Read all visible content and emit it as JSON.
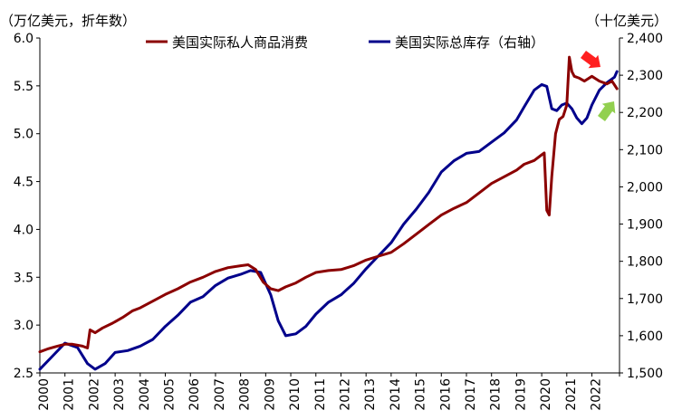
{
  "chart_data": {
    "type": "line",
    "left_axis_title": "（万亿美元，折年数）",
    "right_axis_title": "（十亿美元）",
    "x_ticks": [
      "2000",
      "2001",
      "2002",
      "2003",
      "2004",
      "2005",
      "2006",
      "2007",
      "2008",
      "2009",
      "2010",
      "2011",
      "2012",
      "2013",
      "2014",
      "2015",
      "2016",
      "2017",
      "2018",
      "2019",
      "2020",
      "2021",
      "2022"
    ],
    "xlim": [
      2000,
      2023.1
    ],
    "ylim_left": [
      2.5,
      6.0
    ],
    "y_ticks_left": [
      "2.5",
      "3.0",
      "3.5",
      "4.0",
      "4.5",
      "5.0",
      "5.5",
      "6.0"
    ],
    "ylim_right": [
      1500,
      2400
    ],
    "y_ticks_right": [
      "1,500",
      "1,600",
      "1,700",
      "1,800",
      "1,900",
      "2,000",
      "2,100",
      "2,200",
      "2,300",
      "2,400"
    ],
    "grid": false,
    "legend_position": "top",
    "colors": {
      "consumption": "#8B0000",
      "inventories": "#00008B",
      "down_arrow": "#FF2020",
      "up_arrow": "#92D050"
    },
    "series": [
      {
        "name": "美国实际私人商品消费",
        "axis": "left",
        "x": [
          2000.0,
          2000.3,
          2000.7,
          2001.0,
          2001.3,
          2001.7,
          2001.9,
          2002.0,
          2002.2,
          2002.5,
          2002.9,
          2003.3,
          2003.7,
          2004.0,
          2004.5,
          2005.0,
          2005.5,
          2006.0,
          2006.5,
          2007.0,
          2007.5,
          2008.0,
          2008.3,
          2008.6,
          2008.9,
          2009.2,
          2009.5,
          2009.8,
          2010.2,
          2010.6,
          2011.0,
          2011.5,
          2012.0,
          2012.5,
          2013.0,
          2013.5,
          2014.0,
          2014.5,
          2015.0,
          2015.5,
          2016.0,
          2016.5,
          2017.0,
          2017.5,
          2018.0,
          2018.5,
          2019.0,
          2019.3,
          2019.7,
          2020.0,
          2020.1,
          2020.2,
          2020.3,
          2020.4,
          2020.55,
          2020.7,
          2020.85,
          2021.0,
          2021.1,
          2021.2,
          2021.3,
          2021.5,
          2021.7,
          2022.0,
          2022.3,
          2022.6,
          2022.8,
          2023.0
        ],
        "values": [
          2.72,
          2.75,
          2.78,
          2.8,
          2.8,
          2.78,
          2.76,
          2.95,
          2.92,
          2.97,
          3.02,
          3.08,
          3.15,
          3.18,
          3.25,
          3.32,
          3.38,
          3.45,
          3.5,
          3.56,
          3.6,
          3.62,
          3.63,
          3.58,
          3.45,
          3.38,
          3.36,
          3.4,
          3.44,
          3.5,
          3.55,
          3.57,
          3.58,
          3.62,
          3.68,
          3.72,
          3.76,
          3.85,
          3.95,
          4.05,
          4.15,
          4.22,
          4.28,
          4.38,
          4.48,
          4.55,
          4.62,
          4.68,
          4.72,
          4.78,
          4.8,
          4.2,
          4.15,
          4.55,
          5.0,
          5.15,
          5.18,
          5.3,
          5.8,
          5.65,
          5.6,
          5.58,
          5.55,
          5.6,
          5.55,
          5.52,
          5.55,
          5.47
        ]
      },
      {
        "name": "美国实际总库存（右轴）",
        "axis": "right",
        "x": [
          2000.0,
          2000.5,
          2001.0,
          2001.5,
          2001.9,
          2002.2,
          2002.6,
          2003.0,
          2003.5,
          2004.0,
          2004.5,
          2005.0,
          2005.5,
          2006.0,
          2006.5,
          2007.0,
          2007.5,
          2008.0,
          2008.4,
          2008.8,
          2009.2,
          2009.5,
          2009.8,
          2010.2,
          2010.6,
          2011.0,
          2011.5,
          2012.0,
          2012.5,
          2013.0,
          2013.5,
          2014.0,
          2014.5,
          2015.0,
          2015.5,
          2016.0,
          2016.5,
          2017.0,
          2017.5,
          2018.0,
          2018.5,
          2019.0,
          2019.3,
          2019.7,
          2020.0,
          2020.2,
          2020.4,
          2020.6,
          2020.8,
          2021.0,
          2021.2,
          2021.4,
          2021.6,
          2021.8,
          2022.0,
          2022.3,
          2022.6,
          2022.9,
          2023.0
        ],
        "values": [
          1510,
          1545,
          1580,
          1568,
          1525,
          1510,
          1525,
          1555,
          1560,
          1572,
          1590,
          1625,
          1655,
          1690,
          1705,
          1735,
          1755,
          1765,
          1775,
          1770,
          1710,
          1640,
          1600,
          1605,
          1625,
          1658,
          1690,
          1710,
          1740,
          1780,
          1815,
          1850,
          1900,
          1940,
          1985,
          2040,
          2070,
          2090,
          2095,
          2120,
          2145,
          2180,
          2215,
          2260,
          2275,
          2270,
          2210,
          2205,
          2220,
          2225,
          2210,
          2185,
          2170,
          2185,
          2220,
          2260,
          2280,
          2295,
          2310
        ]
      }
    ],
    "annotations": [
      {
        "type": "arrow",
        "direction": "down-right",
        "color": "red",
        "near": "consumption-end"
      },
      {
        "type": "arrow",
        "direction": "up-right",
        "color": "green",
        "near": "inventories-end"
      }
    ]
  }
}
